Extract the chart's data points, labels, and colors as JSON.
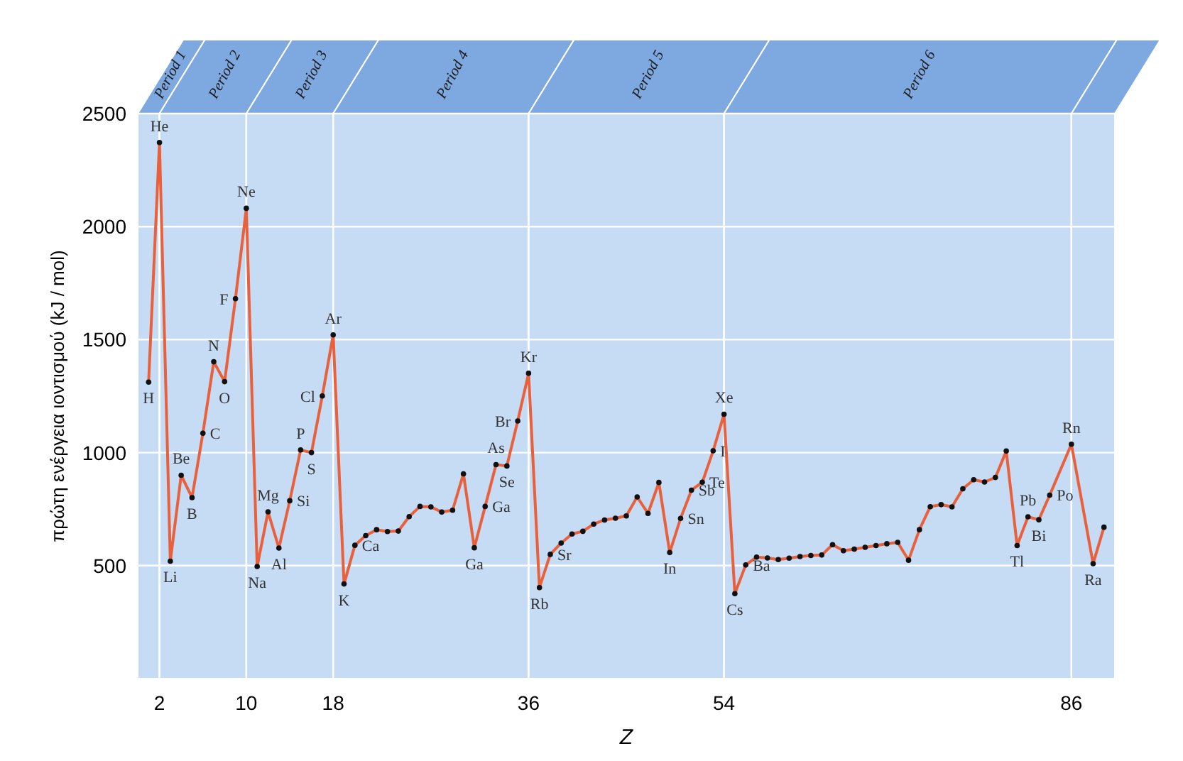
{
  "chart_data": {
    "type": "line",
    "xlabel": "Z",
    "ylabel": "πρώτη ενέργεια ιοντισμού  (kJ / mol)",
    "xlim": [
      0,
      90
    ],
    "ylim": [
      0,
      2500
    ],
    "xticks": [
      2,
      10,
      18,
      36,
      54,
      86
    ],
    "yticks": [
      500,
      1000,
      1500,
      2000,
      2500
    ],
    "grid": true,
    "marker": "circle",
    "line_style": "solid",
    "series": [
      {
        "color": "#e8603c",
        "x": [
          1,
          2,
          3,
          4,
          5,
          6,
          7,
          8,
          9,
          10,
          11,
          12,
          13,
          14,
          15,
          16,
          17,
          18,
          19,
          20,
          21,
          22,
          23,
          24,
          25,
          26,
          27,
          28,
          29,
          30,
          31,
          32,
          33,
          34,
          35,
          36,
          37,
          38,
          39,
          40,
          41,
          42,
          43,
          44,
          45,
          46,
          47,
          48,
          49,
          50,
          51,
          52,
          53,
          54,
          55,
          56,
          57,
          58,
          59,
          60,
          61,
          62,
          63,
          64,
          65,
          66,
          67,
          68,
          69,
          70,
          71,
          72,
          73,
          74,
          75,
          76,
          77,
          78,
          79,
          80,
          81,
          82,
          83,
          84,
          86,
          88,
          89
        ],
        "values": [
          1312,
          2372,
          520,
          900,
          801,
          1086,
          1402,
          1314,
          1681,
          2081,
          496,
          738,
          578,
          787,
          1012,
          1000,
          1251,
          1521,
          419,
          590,
          633,
          659,
          651,
          653,
          717,
          762,
          760,
          737,
          745,
          906,
          579,
          762,
          947,
          941,
          1140,
          1351,
          403,
          550,
          600,
          640,
          652,
          684,
          702,
          710,
          720,
          804,
          731,
          868,
          558,
          709,
          834,
          869,
          1008,
          1170,
          376,
          503,
          538,
          534,
          527,
          533,
          540,
          545,
          547,
          593,
          566,
          573,
          581,
          589,
          597,
          603,
          524,
          659,
          761,
          770,
          760,
          840,
          880,
          870,
          890,
          1007,
          589,
          716,
          703,
          812,
          1037,
          509,
          670
        ]
      }
    ],
    "bands": [
      {
        "axis": "x",
        "from": 0,
        "to": 2,
        "label": "Period 1"
      },
      {
        "axis": "x",
        "from": 2,
        "to": 10,
        "label": "Period 2"
      },
      {
        "axis": "x",
        "from": 10,
        "to": 18,
        "label": "Period 3"
      },
      {
        "axis": "x",
        "from": 18,
        "to": 36,
        "label": "Period 4"
      },
      {
        "axis": "x",
        "from": 36,
        "to": 54,
        "label": "Period 5"
      },
      {
        "axis": "x",
        "from": 54,
        "to": 86,
        "label": "Period 6"
      },
      {
        "axis": "x",
        "from": 86,
        "to": 90
      }
    ],
    "annotations": [
      {
        "text": "H",
        "x": 1,
        "y": 1312
      },
      {
        "text": "He",
        "x": 2,
        "y": 2372
      },
      {
        "text": "Li",
        "x": 3,
        "y": 520
      },
      {
        "text": "Be",
        "x": 4,
        "y": 900
      },
      {
        "text": "B",
        "x": 5,
        "y": 801
      },
      {
        "text": "C",
        "x": 6,
        "y": 1086
      },
      {
        "text": "N",
        "x": 7,
        "y": 1402
      },
      {
        "text": "O",
        "x": 8,
        "y": 1314
      },
      {
        "text": "F",
        "x": 9,
        "y": 1681
      },
      {
        "text": "Ne",
        "x": 10,
        "y": 2081
      },
      {
        "text": "Na",
        "x": 11,
        "y": 496
      },
      {
        "text": "Mg",
        "x": 12,
        "y": 738
      },
      {
        "text": "Al",
        "x": 13,
        "y": 578
      },
      {
        "text": "Si",
        "x": 14,
        "y": 787
      },
      {
        "text": "P",
        "x": 15,
        "y": 1012
      },
      {
        "text": "S",
        "x": 16,
        "y": 1000
      },
      {
        "text": "Cl",
        "x": 17,
        "y": 1251
      },
      {
        "text": "Ar",
        "x": 18,
        "y": 1521
      },
      {
        "text": "K",
        "x": 19,
        "y": 419
      },
      {
        "text": "Ca",
        "x": 20,
        "y": 590
      },
      {
        "text": "Ga",
        "x": 31,
        "y": 579
      },
      {
        "text": "Ga",
        "x": 32,
        "y": 762
      },
      {
        "text": "As",
        "x": 33,
        "y": 947
      },
      {
        "text": "Se",
        "x": 34,
        "y": 941
      },
      {
        "text": "Br",
        "x": 35,
        "y": 1140
      },
      {
        "text": "Kr",
        "x": 36,
        "y": 1351
      },
      {
        "text": "Rb",
        "x": 37,
        "y": 403
      },
      {
        "text": "Sr",
        "x": 38,
        "y": 550
      },
      {
        "text": "In",
        "x": 49,
        "y": 558
      },
      {
        "text": "Sn",
        "x": 50,
        "y": 709
      },
      {
        "text": "Sb",
        "x": 51,
        "y": 834
      },
      {
        "text": "Te",
        "x": 52,
        "y": 869
      },
      {
        "text": "I",
        "x": 53,
        "y": 1008
      },
      {
        "text": "Xe",
        "x": 54,
        "y": 1170
      },
      {
        "text": "Cs",
        "x": 55,
        "y": 376
      },
      {
        "text": "Ba",
        "x": 56,
        "y": 503
      },
      {
        "text": "Tl",
        "x": 81,
        "y": 589
      },
      {
        "text": "Pb",
        "x": 82,
        "y": 716
      },
      {
        "text": "Bi",
        "x": 83,
        "y": 703
      },
      {
        "text": "Po",
        "x": 84,
        "y": 812
      },
      {
        "text": "Rn",
        "x": 86,
        "y": 1037
      },
      {
        "text": "Ra",
        "x": 88,
        "y": 509
      }
    ]
  }
}
